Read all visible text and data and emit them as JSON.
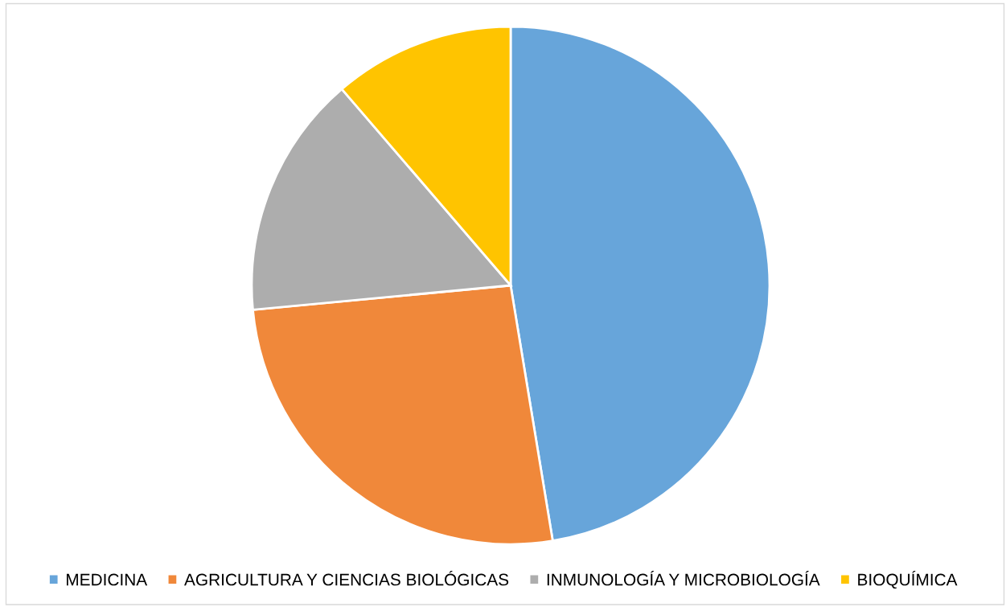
{
  "chart_data": {
    "type": "pie",
    "categories": [
      "MEDICINA",
      "AGRICULTURA Y CIENCIAS BIOLÓGICAS",
      "INMUNOLOGÍA Y MICROBIOLOGÍA",
      "BIOQUÍMICA"
    ],
    "values": [
      47.4,
      26.1,
      15.2,
      11.3
    ],
    "colors": [
      "#67a5da",
      "#f0883a",
      "#adadad",
      "#ffc400"
    ],
    "legend": "bottom"
  }
}
